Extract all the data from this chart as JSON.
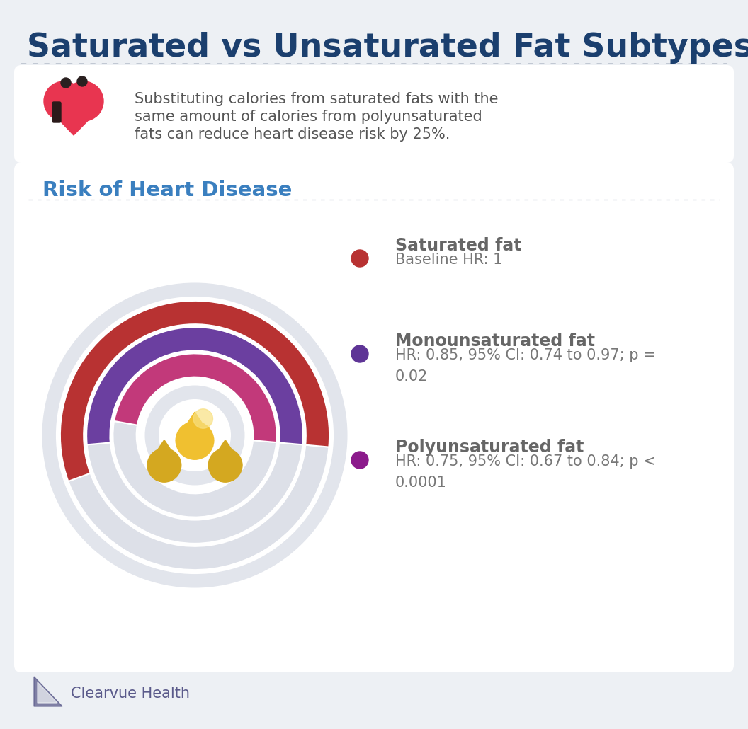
{
  "title": "Saturated vs Unsaturated Fat Subtypes",
  "title_color": "#1b3f6e",
  "background_color": "#edf0f4",
  "card_color": "#ffffff",
  "info_text_line1": "Substituting calories from saturated fats with the",
  "info_text_line2": "same amount of calories from polyunsaturated",
  "info_text_line3": "fats can reduce heart disease risk by 25%.",
  "section2_title": "Risk of Heart Disease",
  "section2_title_color": "#3a7fbf",
  "legend_items": [
    {
      "label": "Saturated fat",
      "sublabel_line1": "Baseline HR: 1",
      "sublabel_line2": "",
      "dot_color": "#b83232"
    },
    {
      "label": "Monounsaturated fat",
      "sublabel_line1": "HR: 0.85, 95% CI: 0.74 to 0.97; p =",
      "sublabel_line2": "0.02",
      "dot_color": "#5e3496"
    },
    {
      "label": "Polyunsaturated fat",
      "sublabel_line1": "HR: 0.75, 95% CI: 0.67 to 0.84; p <",
      "sublabel_line2": "0.0001",
      "dot_color": "#8b1a8b"
    }
  ],
  "arc_items": [
    {
      "color": "#b83232",
      "r_outer": 0.97,
      "r_inner": 0.8,
      "theta1": -5,
      "theta2": 200
    },
    {
      "color": "#6b3fa0",
      "r_outer": 0.78,
      "r_inner": 0.61,
      "theta1": -5,
      "theta2": 185
    },
    {
      "color": "#c2397a",
      "r_outer": 0.59,
      "r_inner": 0.42,
      "theta1": -5,
      "theta2": 170
    }
  ],
  "bg_ring_radii": [
    1.05,
    0.88,
    0.69,
    0.5,
    0.31
  ],
  "bg_ring_color": "#e2e5ec",
  "footer_text": "Clearvue Health",
  "footer_color": "#5a5a8a"
}
